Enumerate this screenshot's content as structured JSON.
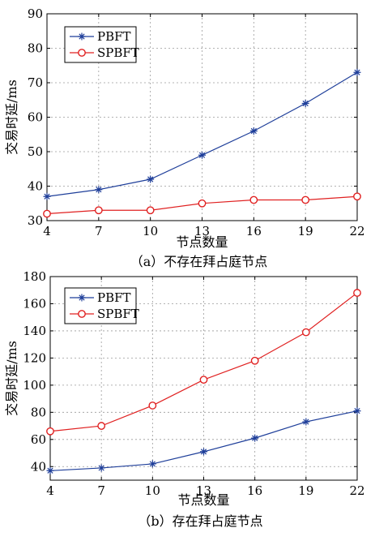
{
  "chart_data": [
    {
      "type": "line",
      "caption": "（a）不存在拜占庭节点",
      "xlabel": "节点数量",
      "ylabel": "交易时延/ms",
      "x": [
        4,
        7,
        10,
        13,
        16,
        19,
        22
      ],
      "xlim": [
        4,
        22
      ],
      "ylim": [
        30,
        90
      ],
      "yticks": [
        30,
        40,
        50,
        60,
        70,
        80,
        90
      ],
      "grid": true,
      "legend_position": "top-left",
      "series": [
        {
          "name": "PBFT",
          "marker": "asterisk",
          "color": "#1f3f9a",
          "values": [
            37,
            39,
            42,
            49,
            56,
            64,
            73
          ]
        },
        {
          "name": "SPBFT",
          "marker": "circle",
          "color": "#e02020",
          "values": [
            32,
            33,
            33,
            35,
            36,
            36,
            37
          ]
        }
      ]
    },
    {
      "type": "line",
      "caption": "（b）存在拜占庭节点",
      "xlabel": "节点数量",
      "ylabel": "交易时延/ms",
      "x": [
        4,
        7,
        10,
        13,
        16,
        19,
        22
      ],
      "xlim": [
        4,
        22
      ],
      "ylim": [
        30,
        180
      ],
      "yticks": [
        40,
        60,
        80,
        100,
        120,
        140,
        160,
        180
      ],
      "grid": true,
      "legend_position": "top-left",
      "series": [
        {
          "name": "PBFT",
          "marker": "asterisk",
          "color": "#1f3f9a",
          "values": [
            37,
            39,
            42,
            51,
            61,
            73,
            81
          ]
        },
        {
          "name": "SPBFT",
          "marker": "circle",
          "color": "#e02020",
          "values": [
            66,
            70,
            85,
            104,
            118,
            139,
            168
          ]
        }
      ]
    }
  ]
}
